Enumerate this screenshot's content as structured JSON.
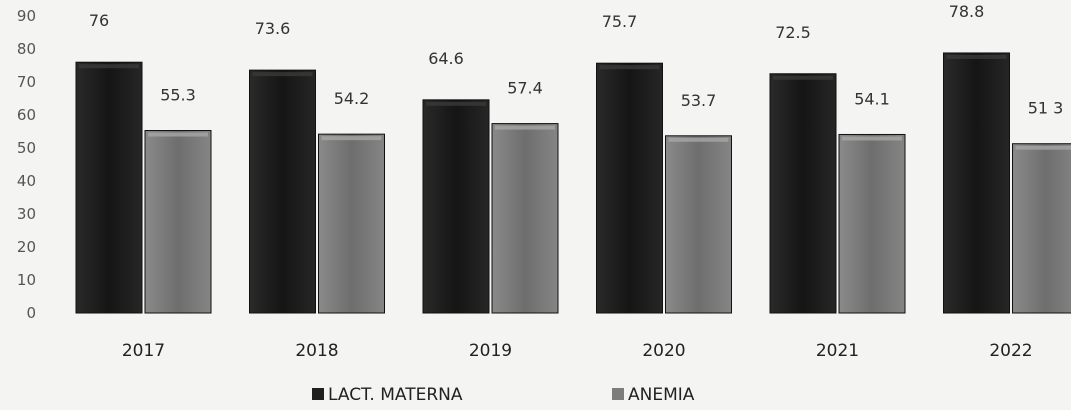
{
  "chart_data": {
    "type": "bar",
    "categories": [
      "2017",
      "2018",
      "2019",
      "2020",
      "2021",
      "2022"
    ],
    "series": [
      {
        "name": "LACT. MATERNA",
        "values": [
          76,
          73.6,
          64.6,
          75.7,
          72.5,
          78.8
        ],
        "labels": [
          "76",
          "73.6",
          "64.6",
          "75.7",
          "72.5",
          "78.8"
        ],
        "color": "#1f1f1f"
      },
      {
        "name": "ANEMIA",
        "values": [
          55.3,
          54.2,
          57.4,
          53.7,
          54.1,
          51.3
        ],
        "labels": [
          "55.3",
          "54.2",
          "57.4",
          "53.7",
          "54.1",
          "51 3"
        ],
        "color": "#7d7d7d"
      }
    ],
    "yticks": [
      "0",
      "10",
      "20",
      "30",
      "40",
      "50",
      "60",
      "70",
      "80",
      "90"
    ],
    "ylim": [
      0,
      90
    ],
    "grid": false,
    "legend_position": "bottom"
  }
}
